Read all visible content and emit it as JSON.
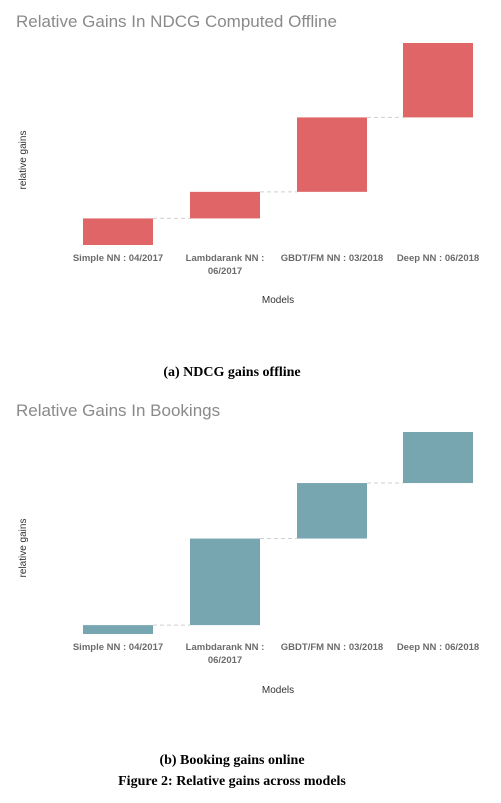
{
  "chart_data": [
    {
      "type": "bar",
      "subtype": "waterfall",
      "title": "Relative Gains In NDCG Computed Offline",
      "ylabel": "relative gains",
      "xlabel": "Models",
      "categories": [
        "Simple NN : 04/2017",
        "Lambdarank NN : 06/2017",
        "GBDT/FM NN : 03/2018",
        "Deep NN : 06/2018"
      ],
      "values": [
        1.0,
        1.0,
        2.8,
        2.8
      ],
      "color": "#e06566",
      "grid": false,
      "caption": "(a) NDCG gains offline"
    },
    {
      "type": "bar",
      "subtype": "waterfall",
      "title": "Relative Gains In Bookings",
      "ylabel": "relative gains",
      "xlabel": "Models",
      "categories": [
        "Simple NN : 04/2017",
        "Lambdarank NN : 06/2017",
        "GBDT/FM NN : 03/2018",
        "Deep NN : 06/2018"
      ],
      "values": [
        0.4,
        3.9,
        2.5,
        2.3
      ],
      "color": "#78a6b0",
      "grid": false,
      "caption": "(b) Booking gains online"
    }
  ],
  "figure_caption": "Figure 2: Relative gains across models"
}
